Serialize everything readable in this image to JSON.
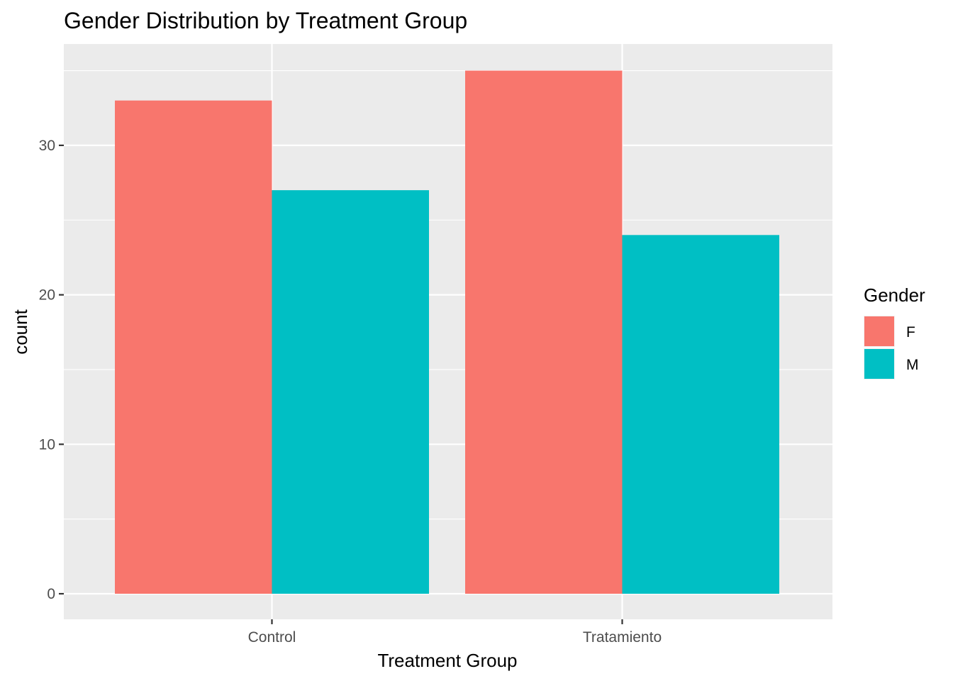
{
  "chart_data": {
    "type": "bar",
    "title": "Gender Distribution by Treatment Group",
    "xlabel": "Treatment Group",
    "ylabel": "count",
    "categories": [
      "Control",
      "Tratamiento"
    ],
    "series": [
      {
        "name": "F",
        "values": [
          33,
          35
        ],
        "color": "#F8766D"
      },
      {
        "name": "M",
        "values": [
          27,
          24
        ],
        "color": "#00BFC4"
      }
    ],
    "ylim": [
      0,
      36.7
    ],
    "yticks": [
      0,
      10,
      20,
      30
    ],
    "grid": true,
    "legend": {
      "title": "Gender",
      "position": "right"
    },
    "panel_background": "#EBEBEB",
    "grid_color": "#FFFFFF"
  }
}
